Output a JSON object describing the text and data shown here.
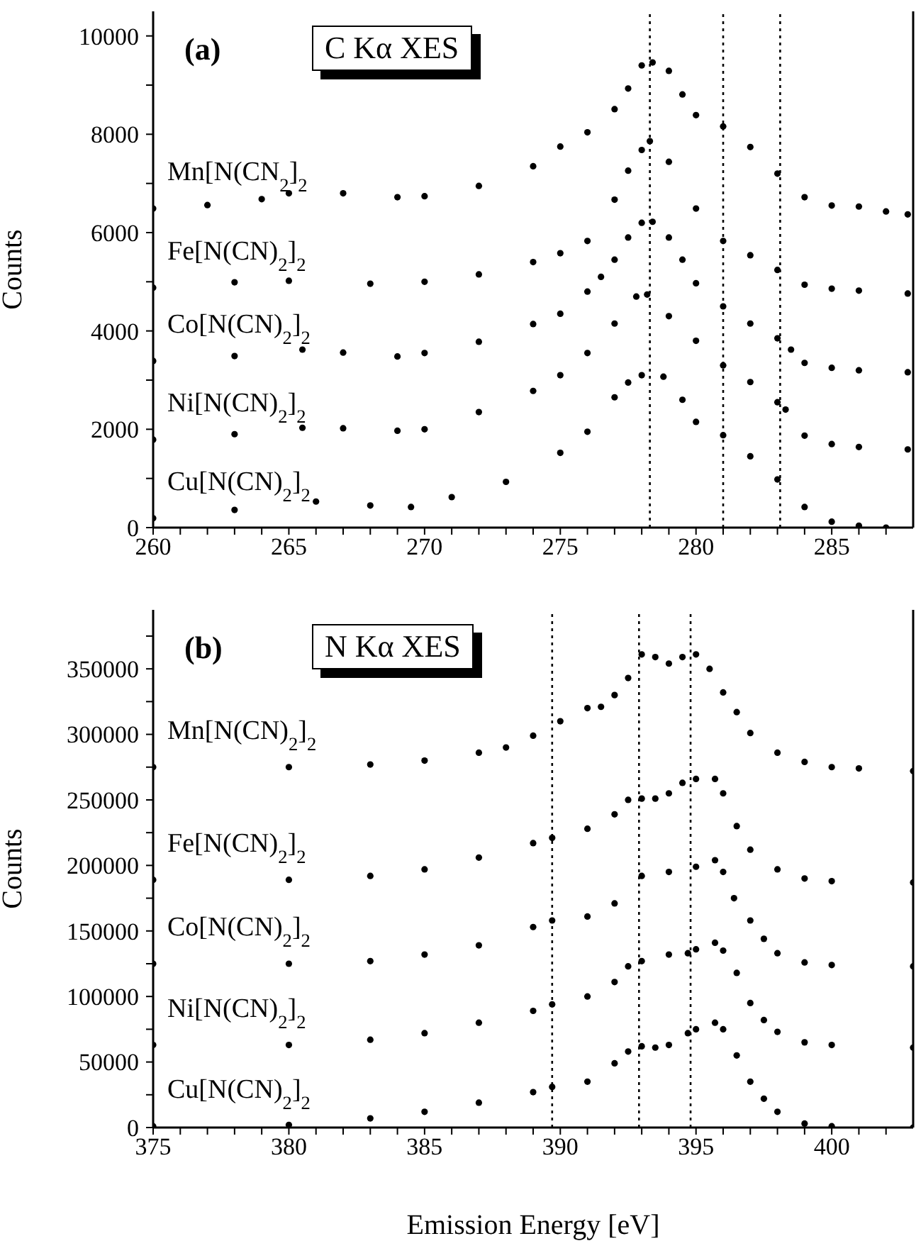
{
  "chart_data": [
    {
      "type": "scatter",
      "annotations": [
        "(a)",
        "C Kα XES"
      ],
      "ylabel": "Counts",
      "marker": "circle",
      "xlim": [
        260,
        288
      ],
      "xticks": [
        260,
        {
          "value": 261,
          "label": null
        },
        {
          "value": 262,
          "label": null
        },
        {
          "value": 263,
          "label": null
        },
        {
          "value": 264,
          "label": null
        },
        265,
        {
          "value": 266,
          "label": null
        },
        {
          "value": 267,
          "label": null
        },
        {
          "value": 268,
          "label": null
        },
        {
          "value": 269,
          "label": null
        },
        270,
        {
          "value": 271,
          "label": null
        },
        {
          "value": 272,
          "label": null
        },
        {
          "value": 273,
          "label": null
        },
        {
          "value": 274,
          "label": null
        },
        275,
        {
          "value": 276,
          "label": null
        },
        {
          "value": 277,
          "label": null
        },
        {
          "value": 278,
          "label": null
        },
        {
          "value": 279,
          "label": null
        },
        280,
        {
          "value": 281,
          "label": null
        },
        {
          "value": 282,
          "label": null
        },
        {
          "value": 283,
          "label": null
        },
        {
          "value": 284,
          "label": null
        },
        285,
        {
          "value": 286,
          "label": null
        },
        {
          "value": 287,
          "label": null
        }
      ],
      "ylim": [
        0,
        10500
      ],
      "yticks": [
        0,
        {
          "value": 1000,
          "label": null
        },
        2000,
        {
          "value": 3000,
          "label": null
        },
        4000,
        {
          "value": 5000,
          "label": null
        },
        6000,
        {
          "value": 7000,
          "label": null
        },
        8000,
        {
          "value": 9000,
          "label": null
        },
        10000
      ],
      "ref_lines": [
        {
          "axis": "x",
          "value": 278.3,
          "color": "#000000",
          "line_style": "dotted"
        },
        {
          "axis": "x",
          "value": 281,
          "color": "#000000",
          "line_style": "dotted"
        },
        {
          "axis": "x",
          "value": 283.1,
          "color": "#000000",
          "line_style": "dotted"
        }
      ],
      "series": [
        {
          "name": "Mn[N(CN$_{2}$]$_{2}$",
          "color": "#000000",
          "x": [
            260,
            262,
            264,
            265,
            267,
            269,
            270,
            272,
            274,
            275,
            276,
            277,
            277.5,
            278,
            278.4,
            279,
            279.5,
            280,
            281,
            282,
            283,
            284,
            285,
            286,
            287,
            287.8
          ],
          "values": [
            6490,
            6560,
            6680,
            6800,
            6800,
            6720,
            6740,
            6950,
            7350,
            7750,
            8040,
            8510,
            8930,
            9400,
            9460,
            9290,
            8810,
            8390,
            8160,
            7740,
            7200,
            6720,
            6550,
            6530,
            6430,
            6370
          ]
        },
        {
          "name": "Fe[N(CN)$_{2}$]$_{2}$",
          "color": "#000000",
          "x": [
            260,
            263,
            265,
            268,
            270,
            272,
            274,
            275,
            276,
            277,
            277.5,
            278,
            278.3,
            279,
            280,
            281,
            282,
            283,
            284,
            285,
            286,
            287.8
          ],
          "values": [
            4880,
            4990,
            5020,
            4960,
            5000,
            5150,
            5400,
            5580,
            5830,
            6670,
            7260,
            7680,
            7860,
            7440,
            6490,
            5830,
            5540,
            5240,
            4940,
            4860,
            4820,
            4760
          ]
        },
        {
          "name": "Co[N(CN)$_{2}$]$_{2}$",
          "color": "#000000",
          "x": [
            260,
            263,
            265.5,
            267,
            269,
            270,
            272,
            274,
            275,
            276,
            276.5,
            277,
            277.5,
            278,
            278.4,
            279,
            279.5,
            280,
            281,
            282,
            283,
            283.5,
            284,
            285,
            286,
            287.8
          ],
          "values": [
            3390,
            3490,
            3620,
            3560,
            3480,
            3550,
            3780,
            4140,
            4350,
            4800,
            5100,
            5450,
            5900,
            6200,
            6220,
            5900,
            5450,
            4970,
            4500,
            4150,
            3850,
            3620,
            3350,
            3250,
            3200,
            3160
          ]
        },
        {
          "name": "Ni[N(CN)$_{2}$]$_{2}$",
          "color": "#000000",
          "x": [
            260,
            263,
            265.5,
            267,
            269,
            270,
            272,
            274,
            275,
            276,
            277,
            277.8,
            278.2,
            279,
            280,
            281,
            282,
            283,
            283.3,
            284,
            285,
            286,
            287.8
          ],
          "values": [
            1790,
            1900,
            2030,
            2020,
            1970,
            2000,
            2350,
            2780,
            3100,
            3550,
            4150,
            4700,
            4740,
            4300,
            3800,
            3300,
            2960,
            2550,
            2400,
            1870,
            1700,
            1640,
            1590
          ]
        },
        {
          "name": "Cu[N(CN)$_{2}$]$_{2}$",
          "color": "#000000",
          "x": [
            260,
            263,
            266,
            268,
            269.5,
            271,
            273,
            275,
            276,
            277,
            277.5,
            278,
            278.8,
            279.5,
            280,
            281,
            282,
            283,
            284,
            285,
            286,
            287
          ],
          "values": [
            190,
            360,
            530,
            450,
            420,
            620,
            930,
            1520,
            1950,
            2650,
            2950,
            3100,
            3070,
            2600,
            2150,
            1880,
            1450,
            980,
            420,
            120,
            40,
            0
          ]
        }
      ]
    },
    {
      "type": "scatter",
      "annotations": [
        "(b)",
        "N Kα XES"
      ],
      "ylabel": "Counts",
      "xlabel": "Emission Energy  [eV]",
      "marker": "circle",
      "xlim": [
        375,
        403
      ],
      "xticks": [
        375,
        {
          "value": 376,
          "label": null
        },
        {
          "value": 377,
          "label": null
        },
        {
          "value": 378,
          "label": null
        },
        {
          "value": 379,
          "label": null
        },
        380,
        {
          "value": 381,
          "label": null
        },
        {
          "value": 382,
          "label": null
        },
        {
          "value": 383,
          "label": null
        },
        {
          "value": 384,
          "label": null
        },
        385,
        {
          "value": 386,
          "label": null
        },
        {
          "value": 387,
          "label": null
        },
        {
          "value": 388,
          "label": null
        },
        {
          "value": 389,
          "label": null
        },
        390,
        {
          "value": 391,
          "label": null
        },
        {
          "value": 392,
          "label": null
        },
        {
          "value": 393,
          "label": null
        },
        {
          "value": 394,
          "label": null
        },
        395,
        {
          "value": 396,
          "label": null
        },
        {
          "value": 397,
          "label": null
        },
        {
          "value": 398,
          "label": null
        },
        {
          "value": 399,
          "label": null
        },
        400,
        {
          "value": 401,
          "label": null
        },
        {
          "value": 402,
          "label": null
        }
      ],
      "ylim": [
        0,
        395000
      ],
      "yticks": [
        0,
        {
          "value": 25000,
          "label": null
        },
        50000,
        {
          "value": 75000,
          "label": null
        },
        100000,
        {
          "value": 125000,
          "label": null
        },
        150000,
        {
          "value": 175000,
          "label": null
        },
        200000,
        {
          "value": 225000,
          "label": null
        },
        250000,
        {
          "value": 275000,
          "label": null
        },
        300000,
        {
          "value": 325000,
          "label": null
        },
        350000,
        {
          "value": 375000,
          "label": null
        }
      ],
      "ref_lines": [
        {
          "axis": "x",
          "value": 389.7,
          "color": "#000000",
          "line_style": "dotted"
        },
        {
          "axis": "x",
          "value": 392.9,
          "color": "#000000",
          "line_style": "dotted"
        },
        {
          "axis": "x",
          "value": 394.8,
          "color": "#000000",
          "line_style": "dotted"
        }
      ],
      "series": [
        {
          "name": "Mn[N(CN)$_{2}$]$_{2}$",
          "color": "#000000",
          "x": [
            375,
            380,
            383,
            385,
            387,
            388,
            389,
            390,
            391,
            391.5,
            392,
            392.5,
            393,
            393.5,
            394,
            394.5,
            395,
            395.5,
            396,
            396.5,
            397,
            398,
            399,
            400,
            401,
            403
          ],
          "values": [
            275000,
            275000,
            277000,
            280000,
            286000,
            290000,
            299000,
            310000,
            320000,
            321000,
            330000,
            343000,
            361000,
            359000,
            354000,
            359000,
            361000,
            350000,
            332000,
            317000,
            301000,
            286000,
            279000,
            275000,
            274000,
            272000
          ]
        },
        {
          "name": "Fe[N(CN)$_{2}$]$_{2}$",
          "color": "#000000",
          "x": [
            375,
            380,
            383,
            385,
            387,
            389,
            389.7,
            391,
            392,
            392.5,
            393,
            393.5,
            394,
            394.5,
            395,
            395.7,
            396,
            396.5,
            397,
            398,
            399,
            400,
            403
          ],
          "values": [
            189000,
            189000,
            192000,
            197000,
            206000,
            217000,
            221000,
            228000,
            239000,
            250000,
            251000,
            251000,
            255000,
            263000,
            266000,
            266000,
            255000,
            230000,
            212000,
            197000,
            190000,
            188000,
            187000
          ]
        },
        {
          "name": "Co[N(CN)$_{2}$]$_{2}$",
          "color": "#000000",
          "x": [
            375,
            380,
            383,
            385,
            387,
            389,
            389.7,
            391,
            392,
            393,
            394,
            395,
            395.7,
            396,
            396.4,
            397,
            397.5,
            398,
            399,
            400,
            403
          ],
          "values": [
            125000,
            125000,
            127000,
            132000,
            139000,
            153000,
            158000,
            161000,
            171000,
            192000,
            195000,
            199000,
            204000,
            195000,
            175000,
            158000,
            144000,
            133000,
            126000,
            124000,
            123000
          ]
        },
        {
          "name": "Ni[N(CN)$_{2}$]$_{2}$",
          "color": "#000000",
          "x": [
            375,
            380,
            383,
            385,
            387,
            389,
            389.7,
            391,
            392,
            392.5,
            393,
            394,
            394.7,
            395,
            395.7,
            396,
            396.5,
            397,
            397.5,
            398,
            399,
            400,
            403
          ],
          "values": [
            63000,
            63000,
            67000,
            72000,
            80000,
            89000,
            94000,
            100000,
            111000,
            123000,
            127000,
            132000,
            133000,
            136000,
            141000,
            135000,
            118000,
            95000,
            82000,
            73000,
            65000,
            63000,
            61000
          ]
        },
        {
          "name": "Cu[N(CN)$_{2}$]$_{2}$",
          "color": "#000000",
          "x": [
            375,
            380,
            383,
            385,
            387,
            389,
            389.7,
            391,
            392,
            392.5,
            393,
            393.5,
            394,
            394.7,
            395,
            395.7,
            396,
            396.5,
            397,
            397.5,
            398,
            399,
            400,
            403
          ],
          "values": [
            1000,
            2000,
            7000,
            12000,
            19000,
            27000,
            31000,
            35000,
            49000,
            58000,
            62000,
            61000,
            63000,
            72000,
            75000,
            80000,
            75000,
            55000,
            35000,
            22000,
            12000,
            3000,
            1000,
            0
          ]
        }
      ]
    }
  ]
}
